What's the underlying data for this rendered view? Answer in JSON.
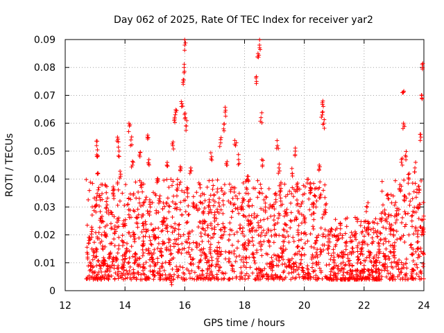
{
  "chart_data": {
    "type": "scatter",
    "title": "Day 062 of 2025, Rate Of TEC Index for receiver yar2",
    "xlabel": "GPS time / hours",
    "ylabel": "ROTI / TECUs",
    "xlim": [
      12,
      24
    ],
    "ylim": [
      0,
      0.09
    ],
    "grid": true,
    "marker": "+",
    "x_ticks": [
      12,
      14,
      16,
      18,
      20,
      22,
      24
    ],
    "y_ticks": [
      0,
      0.01,
      0.02,
      0.03,
      0.04,
      0.05,
      0.06,
      0.07,
      0.08,
      0.09
    ],
    "x_tick_labels": [
      "12",
      "14",
      "16",
      "18",
      "20",
      "22",
      "24"
    ],
    "y_tick_labels": [
      "0",
      "0.01",
      "0.02",
      "0.03",
      "0.04",
      "0.05",
      "0.06",
      "0.07",
      "0.08",
      "0.09"
    ],
    "series": [
      {
        "name": "ROTI",
        "color": "#ff0000",
        "points": [
          [
            12.75,
            0.012
          ],
          [
            12.8,
            0.018
          ],
          [
            12.85,
            0.009
          ],
          [
            12.9,
            0.022
          ],
          [
            12.95,
            0.014
          ],
          [
            13.0,
            0.03
          ],
          [
            13.05,
            0.052
          ],
          [
            13.08,
            0.048
          ],
          [
            13.1,
            0.042
          ],
          [
            13.15,
            0.034
          ],
          [
            13.2,
            0.026
          ],
          [
            13.25,
            0.016
          ],
          [
            13.3,
            0.011
          ],
          [
            13.35,
            0.02
          ],
          [
            13.4,
            0.007
          ],
          [
            13.45,
            0.004
          ],
          [
            13.5,
            0.013
          ],
          [
            13.55,
            0.028
          ],
          [
            13.6,
            0.035
          ],
          [
            13.65,
            0.022
          ],
          [
            13.7,
            0.012
          ],
          [
            13.75,
            0.055
          ],
          [
            13.8,
            0.05
          ],
          [
            13.85,
            0.041
          ],
          [
            13.9,
            0.018
          ],
          [
            13.95,
            0.009
          ],
          [
            14.0,
            0.024
          ],
          [
            14.05,
            0.015
          ],
          [
            14.1,
            0.031
          ],
          [
            14.15,
            0.059
          ],
          [
            14.2,
            0.054
          ],
          [
            14.25,
            0.045
          ],
          [
            14.3,
            0.02
          ],
          [
            14.35,
            0.011
          ],
          [
            14.4,
            0.026
          ],
          [
            14.5,
            0.048
          ],
          [
            14.55,
            0.037
          ],
          [
            14.6,
            0.016
          ],
          [
            14.7,
            0.022
          ],
          [
            14.75,
            0.055
          ],
          [
            14.8,
            0.047
          ],
          [
            14.85,
            0.03
          ],
          [
            14.9,
            0.012
          ],
          [
            15.0,
            0.019
          ],
          [
            15.1,
            0.04
          ],
          [
            15.15,
            0.033
          ],
          [
            15.2,
            0.014
          ],
          [
            15.3,
            0.025
          ],
          [
            15.4,
            0.045
          ],
          [
            15.5,
            0.01
          ],
          [
            15.55,
            0.003
          ],
          [
            15.6,
            0.052
          ],
          [
            15.65,
            0.061
          ],
          [
            15.7,
            0.064
          ],
          [
            15.75,
            0.038
          ],
          [
            15.8,
            0.022
          ],
          [
            15.85,
            0.043
          ],
          [
            15.9,
            0.067
          ],
          [
            15.95,
            0.074
          ],
          [
            15.98,
            0.08
          ],
          [
            16.0,
            0.088
          ],
          [
            16.02,
            0.062
          ],
          [
            16.05,
            0.059
          ],
          [
            16.1,
            0.035
          ],
          [
            16.15,
            0.021
          ],
          [
            16.2,
            0.044
          ],
          [
            16.3,
            0.031
          ],
          [
            16.4,
            0.016
          ],
          [
            16.5,
            0.038
          ],
          [
            16.6,
            0.024
          ],
          [
            16.7,
            0.012
          ],
          [
            16.8,
            0.03
          ],
          [
            16.9,
            0.048
          ],
          [
            17.0,
            0.022
          ],
          [
            17.1,
            0.014
          ],
          [
            17.2,
            0.053
          ],
          [
            17.3,
            0.058
          ],
          [
            17.35,
            0.064
          ],
          [
            17.4,
            0.045
          ],
          [
            17.5,
            0.02
          ],
          [
            17.6,
            0.009
          ],
          [
            17.7,
            0.052
          ],
          [
            17.8,
            0.047
          ],
          [
            17.9,
            0.03
          ],
          [
            18.0,
            0.016
          ],
          [
            18.1,
            0.041
          ],
          [
            18.2,
            0.025
          ],
          [
            18.3,
            0.012
          ],
          [
            18.4,
            0.075
          ],
          [
            18.45,
            0.085
          ],
          [
            18.5,
            0.088
          ],
          [
            18.55,
            0.062
          ],
          [
            18.6,
            0.045
          ],
          [
            18.7,
            0.03
          ],
          [
            18.8,
            0.018
          ],
          [
            18.9,
            0.01
          ],
          [
            19.0,
            0.022
          ],
          [
            19.1,
            0.052
          ],
          [
            19.15,
            0.044
          ],
          [
            19.2,
            0.036
          ],
          [
            19.3,
            0.016
          ],
          [
            19.4,
            0.028
          ],
          [
            19.5,
            0.011
          ],
          [
            19.6,
            0.042
          ],
          [
            19.7,
            0.05
          ],
          [
            19.75,
            0.038
          ],
          [
            19.8,
            0.02
          ],
          [
            19.9,
            0.013
          ],
          [
            20.0,
            0.025
          ],
          [
            20.1,
            0.008
          ],
          [
            20.2,
            0.036
          ],
          [
            20.3,
            0.03
          ],
          [
            20.4,
            0.018
          ],
          [
            20.5,
            0.045
          ],
          [
            20.6,
            0.063
          ],
          [
            20.62,
            0.068
          ],
          [
            20.65,
            0.06
          ],
          [
            20.7,
            0.029
          ],
          [
            20.8,
            0.015
          ],
          [
            20.9,
            0.022
          ],
          [
            21.0,
            0.01
          ],
          [
            21.1,
            0.018
          ],
          [
            21.2,
            0.024
          ],
          [
            21.3,
            0.012
          ],
          [
            21.4,
            0.016
          ],
          [
            21.5,
            0.009
          ],
          [
            21.6,
            0.014
          ],
          [
            21.7,
            0.02
          ],
          [
            21.8,
            0.011
          ],
          [
            21.9,
            0.015
          ],
          [
            22.0,
            0.009
          ],
          [
            22.1,
            0.03
          ],
          [
            22.15,
            0.022
          ],
          [
            22.2,
            0.013
          ],
          [
            22.3,
            0.007
          ],
          [
            22.4,
            0.01
          ],
          [
            22.5,
            0.016
          ],
          [
            22.6,
            0.026
          ],
          [
            22.7,
            0.012
          ],
          [
            22.8,
            0.033
          ],
          [
            22.9,
            0.022
          ],
          [
            23.0,
            0.014
          ],
          [
            23.1,
            0.027
          ],
          [
            23.2,
            0.038
          ],
          [
            23.25,
            0.047
          ],
          [
            23.3,
            0.071
          ],
          [
            23.32,
            0.06
          ],
          [
            23.35,
            0.034
          ],
          [
            23.4,
            0.048
          ],
          [
            23.5,
            0.04
          ],
          [
            23.6,
            0.025
          ],
          [
            23.7,
            0.044
          ],
          [
            23.8,
            0.03
          ],
          [
            23.85,
            0.036
          ],
          [
            23.9,
            0.055
          ],
          [
            23.93,
            0.07
          ],
          [
            23.96,
            0.08
          ],
          [
            23.98,
            0.022
          ],
          [
            24.0,
            0.013
          ]
        ]
      }
    ],
    "band": {
      "description": "dense near-continuous band of ROTI values",
      "x_start": 12.7,
      "x_end": 24.0,
      "y_typical_range": [
        0.004,
        0.04
      ]
    }
  }
}
